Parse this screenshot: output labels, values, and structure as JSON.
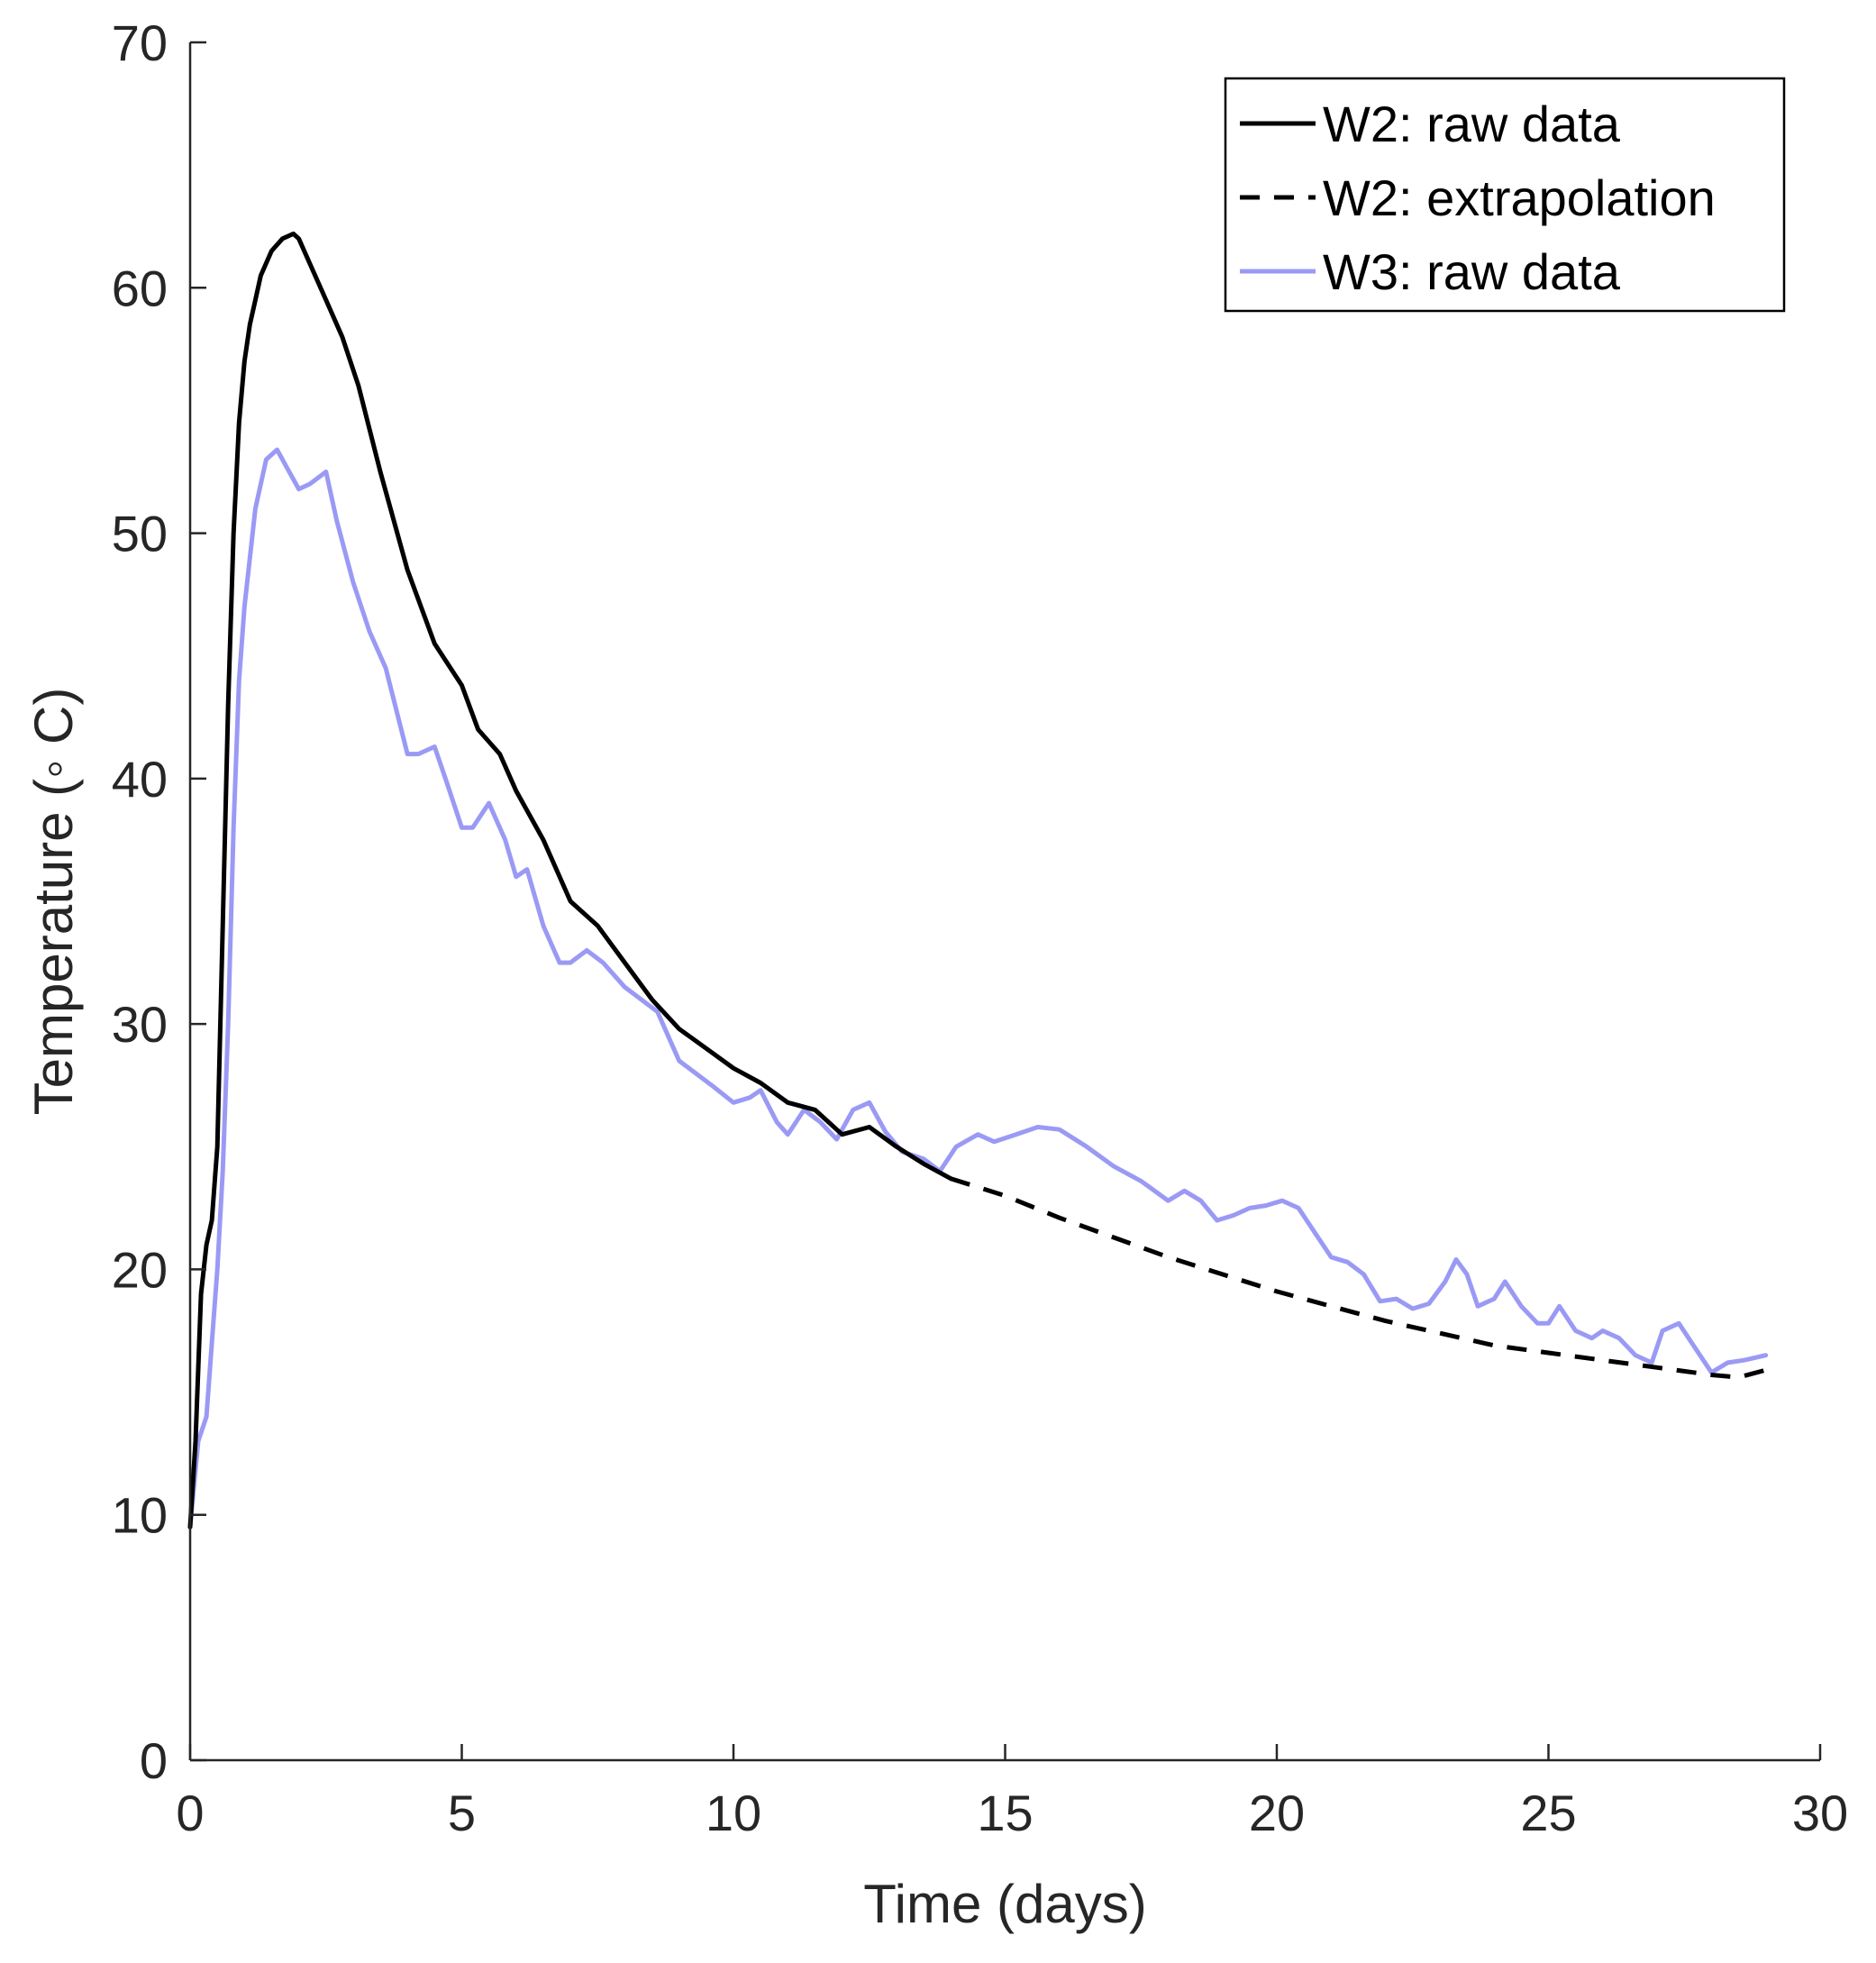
{
  "chart_data": {
    "type": "line",
    "title": "",
    "xlabel": "Time (days)",
    "ylabel": "Temperature (◦ C)",
    "xlim": [
      0,
      30
    ],
    "ylim": [
      0,
      70
    ],
    "xticks": [
      0,
      5,
      10,
      15,
      20,
      25,
      30
    ],
    "yticks": [
      0,
      10,
      20,
      30,
      40,
      50,
      60,
      70
    ],
    "grid": false,
    "legend_position": "top-right",
    "colors": {
      "axis": "#262626",
      "w2": "#000000",
      "w3": "#9a9af5"
    },
    "series": [
      {
        "name": "W2: raw data",
        "style": "solid",
        "x": [
          0,
          0.1,
          0.2,
          0.3,
          0.4,
          0.5,
          0.6,
          0.7,
          0.8,
          0.9,
          1.0,
          1.1,
          1.2,
          1.3,
          1.5,
          1.7,
          1.9,
          2.0,
          2.2,
          2.5,
          2.8,
          3.1,
          3.5,
          4.0,
          4.5,
          5.0,
          5.3,
          5.7,
          6.0,
          6.5,
          7.0,
          7.5,
          8.0,
          8.5,
          9.0,
          9.5,
          10.0,
          10.5,
          11.0,
          11.5,
          12.0,
          12.5,
          13.0,
          13.5,
          14.0
        ],
        "y": [
          9.5,
          13,
          19,
          21,
          22,
          25,
          34,
          43,
          50,
          54.5,
          57,
          58.5,
          59.5,
          60.5,
          61.5,
          62,
          62.2,
          62,
          61,
          59.5,
          58,
          56,
          52.5,
          48.5,
          45.5,
          43.8,
          42,
          41,
          39.5,
          37.5,
          35,
          34,
          32.5,
          31,
          29.8,
          29,
          28.2,
          27.6,
          26.8,
          26.5,
          25.5,
          25.8,
          25,
          24.3,
          23.7
        ]
      },
      {
        "name": "W2: extrapolation",
        "style": "dashed",
        "x": [
          14.0,
          15,
          16,
          17,
          18,
          19,
          20,
          21,
          22,
          23,
          24,
          25,
          26,
          27,
          28,
          28.5,
          29.0
        ],
        "y": [
          23.7,
          23.0,
          22.1,
          21.3,
          20.5,
          19.8,
          19.1,
          18.5,
          17.9,
          17.4,
          16.9,
          16.6,
          16.3,
          16.0,
          15.7,
          15.6,
          15.9
        ]
      },
      {
        "name": "W3: raw data",
        "style": "solid",
        "x": [
          0,
          0.15,
          0.3,
          0.4,
          0.5,
          0.6,
          0.7,
          0.8,
          0.9,
          1.0,
          1.2,
          1.4,
          1.6,
          1.8,
          2.0,
          2.2,
          2.5,
          2.7,
          3.0,
          3.3,
          3.6,
          4.0,
          4.2,
          4.5,
          4.7,
          5.0,
          5.2,
          5.5,
          5.8,
          6.0,
          6.2,
          6.5,
          6.8,
          7.0,
          7.3,
          7.6,
          8.0,
          8.3,
          8.6,
          9.0,
          9.3,
          9.6,
          10.0,
          10.3,
          10.5,
          10.8,
          11.0,
          11.3,
          11.6,
          11.9,
          12.2,
          12.5,
          12.8,
          13.1,
          13.5,
          13.8,
          14.1,
          14.5,
          14.8,
          15.2,
          15.6,
          16.0,
          16.5,
          17.0,
          17.5,
          18.0,
          18.3,
          18.6,
          18.9,
          19.2,
          19.5,
          19.8,
          20.1,
          20.4,
          20.7,
          21.0,
          21.3,
          21.6,
          21.9,
          22.2,
          22.5,
          22.8,
          23.1,
          23.3,
          23.5,
          23.7,
          24.0,
          24.2,
          24.5,
          24.8,
          25.0,
          25.2,
          25.5,
          25.8,
          26.0,
          26.3,
          26.6,
          26.9,
          27.1,
          27.4,
          27.7,
          28.0,
          28.3,
          28.6,
          29.0
        ],
        "y": [
          9.5,
          13,
          14,
          17,
          20,
          24,
          30,
          38,
          44,
          47,
          51,
          53,
          53.4,
          52.6,
          51.8,
          52,
          52.5,
          50.5,
          48,
          46,
          44.5,
          41,
          41,
          41.3,
          40,
          38,
          38,
          39,
          37.5,
          36,
          36.3,
          34,
          32.5,
          32.5,
          33,
          32.5,
          31.5,
          31,
          30.5,
          28.5,
          28,
          27.5,
          26.8,
          27,
          27.3,
          26,
          25.5,
          26.5,
          26,
          25.3,
          26.5,
          26.8,
          25.6,
          24.8,
          24.5,
          24,
          25,
          25.5,
          25.2,
          25.5,
          25.8,
          25.7,
          25,
          24.2,
          23.6,
          22.8,
          23.2,
          22.8,
          22,
          22.2,
          22.5,
          22.6,
          22.8,
          22.5,
          21.5,
          20.5,
          20.3,
          19.8,
          18.7,
          18.8,
          18.4,
          18.6,
          19.5,
          20.4,
          19.8,
          18.5,
          18.8,
          19.5,
          18.5,
          17.8,
          17.8,
          18.5,
          17.5,
          17.2,
          17.5,
          17.2,
          16.5,
          16.2,
          17.5,
          17.8,
          16.8,
          15.8,
          16.2,
          16.3,
          16.5
        ]
      }
    ]
  }
}
